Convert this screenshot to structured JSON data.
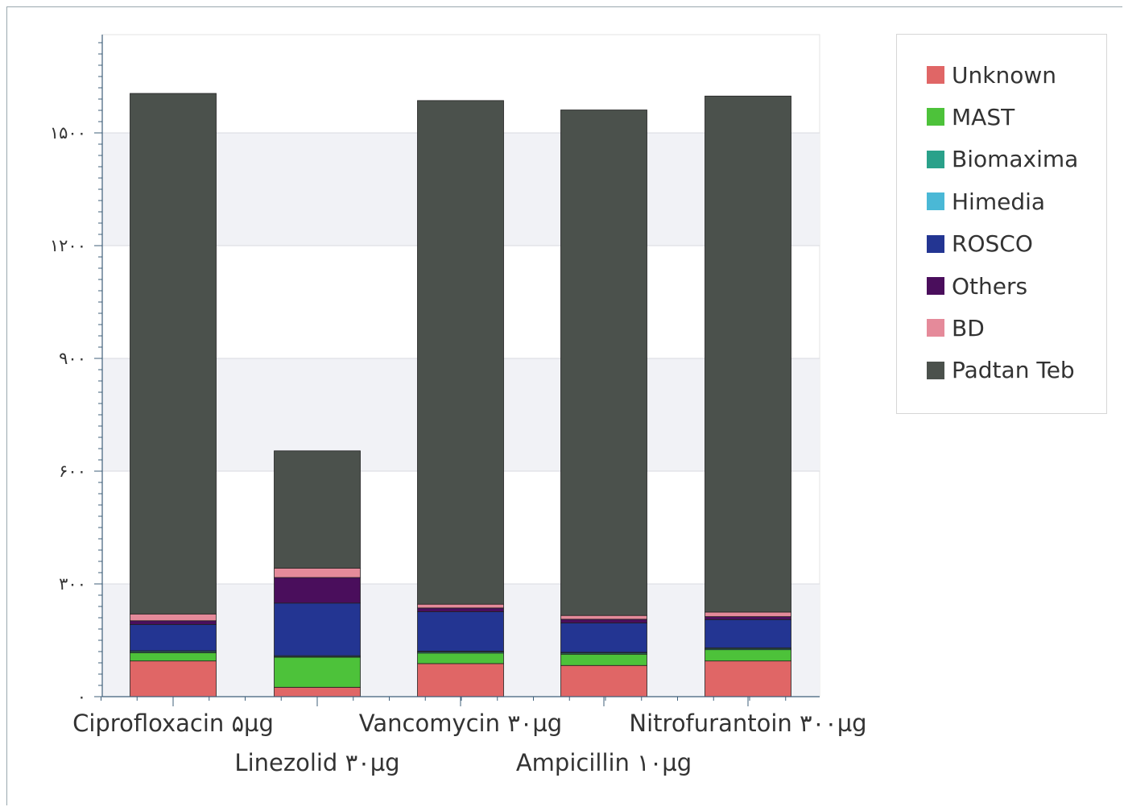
{
  "chart_data": {
    "type": "bar",
    "stacked": true,
    "title": "",
    "xlabel": "",
    "ylabel": "",
    "categories": [
      "Ciprofloxacin ۵µg",
      "Linezolid ۳۰µg",
      "Vancomycin ۳۰µg",
      "Ampicillin ۱۰µg",
      "Nitrofurantoin ۳۰۰µg"
    ],
    "ylim": [
      0,
      1750
    ],
    "yticks": [
      0,
      300,
      600,
      900,
      1200,
      1500
    ],
    "ytick_labels": [
      "۰",
      "۳۰۰",
      "۶۰۰",
      "۹۰۰",
      "۱۲۰۰",
      "۱۵۰۰"
    ],
    "grid": true,
    "legend_position": "right",
    "series": [
      {
        "name": "Unknown",
        "color": "#e06666",
        "values": [
          95,
          25,
          88,
          83,
          95
        ]
      },
      {
        "name": "MAST",
        "color": "#4dc23a",
        "values": [
          22,
          80,
          28,
          30,
          30
        ]
      },
      {
        "name": "Biomaxima",
        "color": "#2aa18a",
        "values": [
          3,
          2,
          3,
          3,
          3
        ]
      },
      {
        "name": "Himedia",
        "color": "#4ab8d6",
        "values": [
          2,
          2,
          2,
          2,
          2
        ]
      },
      {
        "name": "ROSCO",
        "color": "#233592",
        "values": [
          70,
          140,
          105,
          78,
          75
        ]
      },
      {
        "name": "Others",
        "color": "#4a0e5c",
        "values": [
          10,
          68,
          10,
          10,
          8
        ]
      },
      {
        "name": "BD",
        "color": "#e58a9a",
        "values": [
          18,
          25,
          10,
          10,
          12
        ]
      },
      {
        "name": "Padtan Teb",
        "color": "#4b514c",
        "values": [
          1385,
          312,
          1340,
          1345,
          1373
        ]
      }
    ]
  }
}
